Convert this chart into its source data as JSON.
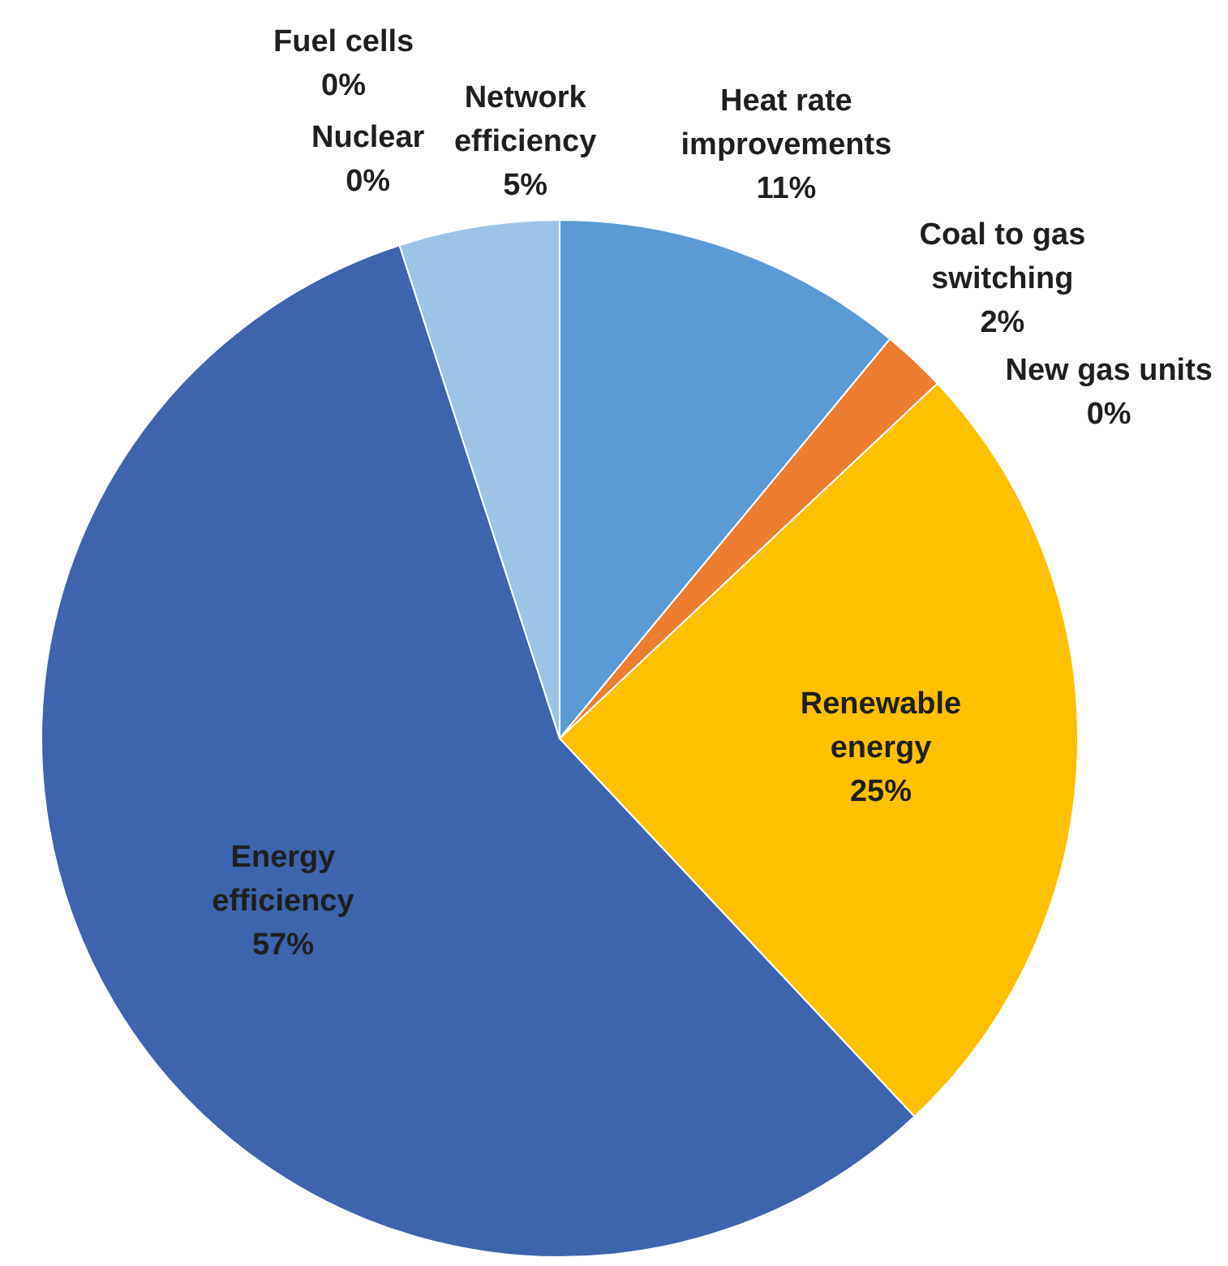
{
  "chart_data": {
    "type": "pie",
    "categories": [
      "Heat rate improvements",
      "Coal to gas switching",
      "New gas units",
      "Renewable energy",
      "Energy efficiency",
      "Nuclear",
      "Network efficiency",
      "Fuel cells"
    ],
    "values": [
      11,
      2,
      0,
      25,
      57,
      0,
      5,
      0
    ],
    "value_labels": [
      "11%",
      "2%",
      "0%",
      "25%",
      "57%",
      "0%",
      "5%",
      "0%"
    ],
    "colors": [
      "#5b9bd5",
      "#ed7d31",
      "#a5a5a5",
      "#ffc000",
      "#3d64ad",
      "#264478",
      "#9dc3e6",
      "#636363"
    ],
    "legend": false
  }
}
